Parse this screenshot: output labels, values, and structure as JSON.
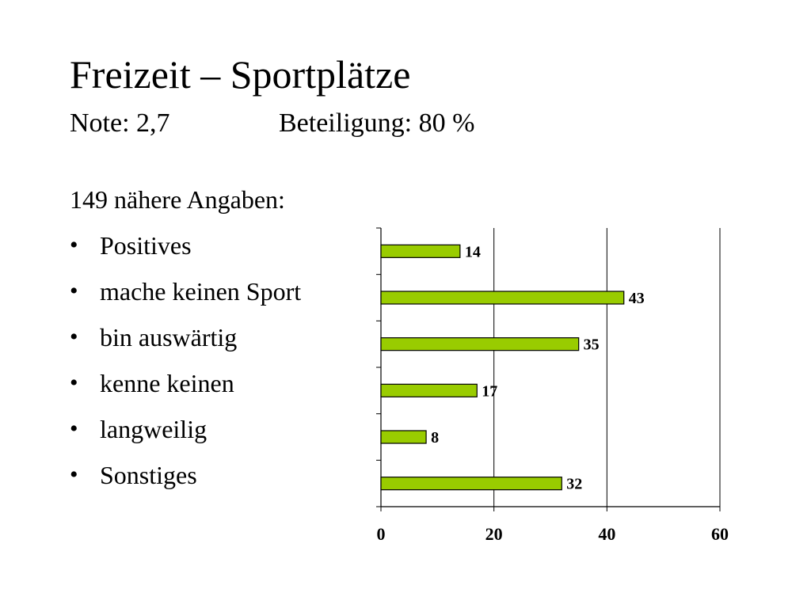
{
  "slide": {
    "title": "Freizeit – Sportplätze",
    "note": "Note: 2,7",
    "participation": "Beteiligung: 80 %",
    "intro": "149 nähere Angaben:",
    "bullet_glyph": "•",
    "items": [
      {
        "label": "Positives"
      },
      {
        "label": "mache keinen Sport"
      },
      {
        "label": "bin auswärtig"
      },
      {
        "label": "kenne keinen"
      },
      {
        "label": "langweilig"
      },
      {
        "label": "Sonstiges"
      }
    ]
  },
  "chart_data": {
    "type": "bar",
    "orientation": "horizontal",
    "categories": [
      "Positives",
      "mache keinen Sport",
      "bin auswärtig",
      "kenne keinen",
      "langweilig",
      "Sonstiges"
    ],
    "values": [
      14,
      43,
      35,
      17,
      8,
      32
    ],
    "xlim": [
      0,
      60
    ],
    "xticks": [
      0,
      20,
      40,
      60
    ],
    "grid": "vertical",
    "legend": "none",
    "bar_color": "#99cc00",
    "title": "",
    "xlabel": "",
    "ylabel": ""
  }
}
